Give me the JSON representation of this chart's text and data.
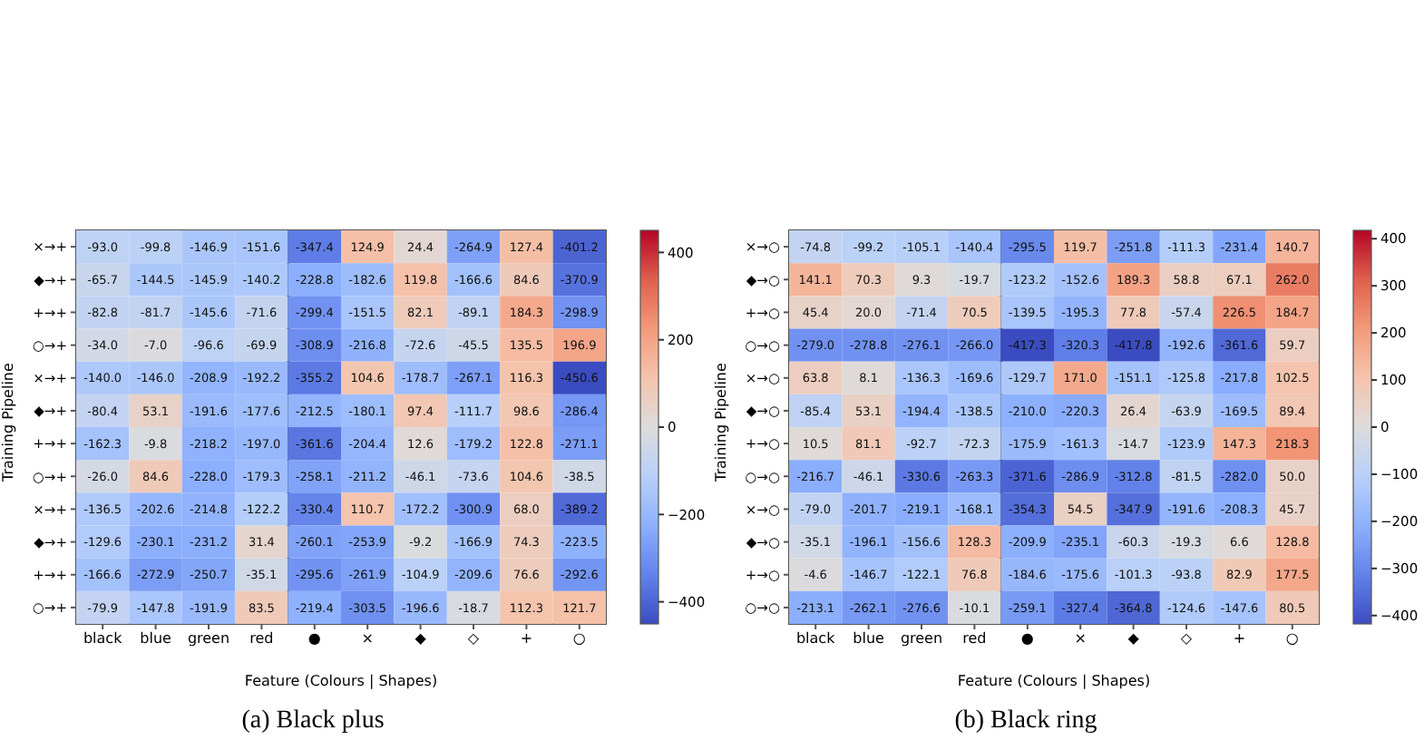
{
  "chart_data": [
    {
      "type": "heatmap",
      "title": "(a) Black plus",
      "xlabel": "Feature (Colours | Shapes)",
      "ylabel": "Training Pipeline",
      "categories": [
        "black",
        "blue",
        "green",
        "red",
        "●",
        "×",
        "◆",
        "◇",
        "+",
        "○"
      ],
      "y_categories": [
        "×→+",
        "◆→+",
        "+→+",
        "○→+",
        "×→+",
        "◆→+",
        "+→+",
        "○→+",
        "×→+",
        "◆→+",
        "+→+",
        "○→+"
      ],
      "cells": [
        [
          -93.0,
          -99.8,
          -146.9,
          -151.6,
          -347.4,
          124.9,
          24.4,
          -264.9,
          127.4,
          -401.2
        ],
        [
          -65.7,
          -144.5,
          -145.9,
          -140.2,
          -228.8,
          -182.6,
          119.8,
          -166.6,
          84.6,
          -370.9
        ],
        [
          -82.8,
          -81.7,
          -145.6,
          -71.6,
          -299.4,
          -151.5,
          82.1,
          -89.1,
          184.3,
          -298.9
        ],
        [
          -34.0,
          -7.0,
          -96.6,
          -69.9,
          -308.9,
          -216.8,
          -72.6,
          -45.5,
          135.5,
          196.9
        ],
        [
          -140.0,
          -146.0,
          -208.9,
          -192.2,
          -355.2,
          104.6,
          -178.7,
          -267.1,
          116.3,
          -450.6
        ],
        [
          -80.4,
          53.1,
          -191.6,
          -177.6,
          -212.5,
          -180.1,
          97.4,
          -111.7,
          98.6,
          -286.4
        ],
        [
          -162.3,
          -9.8,
          -218.2,
          -197.0,
          -361.6,
          -204.4,
          12.6,
          -179.2,
          122.8,
          -271.1
        ],
        [
          -26.0,
          84.6,
          -228.0,
          -179.3,
          -258.1,
          -211.2,
          -46.1,
          -73.6,
          104.6,
          -38.5
        ],
        [
          -136.5,
          -202.6,
          -214.8,
          -122.2,
          -330.4,
          110.7,
          -172.2,
          -300.9,
          68.0,
          -389.2
        ],
        [
          -129.6,
          -230.1,
          -231.2,
          31.4,
          -260.1,
          -253.9,
          -9.2,
          -166.9,
          74.3,
          -223.5
        ],
        [
          -166.6,
          -272.9,
          -250.7,
          -35.1,
          -295.6,
          -261.9,
          -104.9,
          -209.6,
          76.6,
          -292.6
        ],
        [
          -79.9,
          -147.8,
          -191.9,
          83.5,
          -219.4,
          -303.5,
          -196.6,
          -18.7,
          112.3,
          121.7
        ]
      ],
      "cell_labels": [
        [
          "-93.0",
          "-99.8",
          "-146.9",
          "-151.6",
          "-347.4",
          "124.9",
          "24.4",
          "-264.9",
          "127.4",
          "-401.2"
        ],
        [
          "-65.7",
          "-144.5",
          "-145.9",
          "-140.2",
          "-228.8",
          "-182.6",
          "119.8",
          "-166.6",
          "84.6",
          "-370.9"
        ],
        [
          "-82.8",
          "-81.7",
          "-145.6",
          "-71.6",
          "-299.4",
          "-151.5",
          "82.1",
          "-89.1",
          "184.3",
          "-298.9"
        ],
        [
          "-34.0",
          "-7.0",
          "-96.6",
          "-69.9",
          "-308.9",
          "-216.8",
          "-72.6",
          "-45.5",
          "135.5",
          "196.9"
        ],
        [
          "-140.0",
          "-146.0",
          "-208.9",
          "-192.2",
          "-355.2",
          "104.6",
          "-178.7",
          "-267.1",
          "116.3",
          "-450.6"
        ],
        [
          "-80.4",
          "53.1",
          "-191.6",
          "-177.6",
          "-212.5",
          "-180.1",
          "97.4",
          "-111.7",
          "98.6",
          "-286.4"
        ],
        [
          "-162.3",
          "-9.8",
          "-218.2",
          "-197.0",
          "-361.6",
          "-204.4",
          "12.6",
          "-179.2",
          "122.8",
          "-271.1"
        ],
        [
          "-26.0",
          "84.6",
          "-228.0",
          "-179.3",
          "-258.1",
          "-211.2",
          "-46.1",
          "-73.6",
          "104.6",
          "-38.5"
        ],
        [
          "-136.5",
          "-202.6",
          "-214.8",
          "-122.2",
          "-330.4",
          "110.7",
          "-172.2",
          "-300.9",
          "68.0",
          "-389.2"
        ],
        [
          "-129.6",
          "-230.1",
          "-231.2",
          "31.4",
          "-260.1",
          "-253.9",
          "-9.2",
          "-166.9",
          "74.3",
          "-223.5"
        ],
        [
          "-166.6",
          "-272.9",
          "-250.7",
          "-35.1",
          "-295.6",
          "-261.9",
          "-104.9",
          "-209.6",
          "76.6",
          "-292.6"
        ],
        [
          "-79.9",
          "-147.8",
          "-191.9",
          "83.5",
          "-219.4",
          "-303.5",
          "-196.6",
          "-18.7",
          "112.3",
          "121.7"
        ]
      ],
      "clim": [
        -450.6,
        450.6
      ],
      "cticks": [
        400,
        200,
        0,
        {
          "value": -200,
          "label": "−200"
        },
        {
          "value": -400,
          "label": "−400"
        }
      ]
    },
    {
      "type": "heatmap",
      "title": "(b) Black ring",
      "xlabel": "Feature (Colours | Shapes)",
      "ylabel": "Training Pipeline",
      "categories": [
        "black",
        "blue",
        "green",
        "red",
        "●",
        "×",
        "◆",
        "◇",
        "+",
        "○"
      ],
      "y_categories": [
        "×→○",
        "◆→○",
        "+→○",
        "○→○",
        "×→○",
        "◆→○",
        "+→○",
        "○→○",
        "×→○",
        "◆→○",
        "+→○",
        "○→○"
      ],
      "cells": [
        [
          -74.8,
          -99.2,
          -105.1,
          -140.4,
          -295.5,
          119.7,
          -251.8,
          -111.3,
          -231.4,
          140.7
        ],
        [
          141.1,
          70.3,
          9.3,
          -19.7,
          -123.2,
          -152.6,
          189.3,
          58.8,
          67.1,
          262.0
        ],
        [
          45.4,
          20.0,
          -71.4,
          70.5,
          -139.5,
          -195.3,
          77.8,
          -57.4,
          226.5,
          184.7
        ],
        [
          -279.0,
          -278.8,
          -276.1,
          -266.0,
          -417.3,
          -320.3,
          -417.8,
          -192.6,
          -361.6,
          59.7
        ],
        [
          63.8,
          8.1,
          -136.3,
          -169.6,
          -129.7,
          171.0,
          -151.1,
          -125.8,
          -217.8,
          102.5
        ],
        [
          -85.4,
          53.1,
          -194.4,
          -138.5,
          -210.0,
          -220.3,
          26.4,
          -63.9,
          -169.5,
          89.4
        ],
        [
          10.5,
          81.1,
          -92.7,
          -72.3,
          -175.9,
          -161.3,
          -14.7,
          -123.9,
          147.3,
          218.3
        ],
        [
          -216.7,
          -46.1,
          -330.6,
          -263.3,
          -371.6,
          -286.9,
          -312.8,
          -81.5,
          -282.0,
          50.0
        ],
        [
          -79.0,
          -201.7,
          -219.1,
          -168.1,
          -354.3,
          54.5,
          -347.9,
          -191.6,
          -208.3,
          45.7
        ],
        [
          -35.1,
          -196.1,
          -156.6,
          128.3,
          -209.9,
          -235.1,
          -60.3,
          -19.3,
          6.6,
          128.8
        ],
        [
          -4.6,
          -146.7,
          -122.1,
          76.8,
          -184.6,
          -175.6,
          -101.3,
          -93.8,
          82.9,
          177.5
        ],
        [
          -213.1,
          -262.1,
          -276.6,
          -10.1,
          -259.1,
          -327.4,
          -364.8,
          -124.6,
          -147.6,
          80.5
        ]
      ],
      "cell_labels": [
        [
          "-74.8",
          "-99.2",
          "-105.1",
          "-140.4",
          "-295.5",
          "119.7",
          "-251.8",
          "-111.3",
          "-231.4",
          "140.7"
        ],
        [
          "141.1",
          "70.3",
          "9.3",
          "-19.7",
          "-123.2",
          "-152.6",
          "189.3",
          "58.8",
          "67.1",
          "262.0"
        ],
        [
          "45.4",
          "20.0",
          "-71.4",
          "70.5",
          "-139.5",
          "-195.3",
          "77.8",
          "-57.4",
          "226.5",
          "184.7"
        ],
        [
          "-279.0",
          "-278.8",
          "-276.1",
          "-266.0",
          "-417.3",
          "-320.3",
          "-417.8",
          "-192.6",
          "-361.6",
          "59.7"
        ],
        [
          "63.8",
          "8.1",
          "-136.3",
          "-169.6",
          "-129.7",
          "171.0",
          "-151.1",
          "-125.8",
          "-217.8",
          "102.5"
        ],
        [
          "-85.4",
          "53.1",
          "-194.4",
          "-138.5",
          "-210.0",
          "-220.3",
          "26.4",
          "-63.9",
          "-169.5",
          "89.4"
        ],
        [
          "10.5",
          "81.1",
          "-92.7",
          "-72.3",
          "-175.9",
          "-161.3",
          "-14.7",
          "-123.9",
          "147.3",
          "218.3"
        ],
        [
          "-216.7",
          "-46.1",
          "-330.6",
          "-263.3",
          "-371.6",
          "-286.9",
          "-312.8",
          "-81.5",
          "-282.0",
          "50.0"
        ],
        [
          "-79.0",
          "-201.7",
          "-219.1",
          "-168.1",
          "-354.3",
          "54.5",
          "-347.9",
          "-191.6",
          "-208.3",
          "45.7"
        ],
        [
          "-35.1",
          "-196.1",
          "-156.6",
          "128.3",
          "-209.9",
          "-235.1",
          "-60.3",
          "-19.3",
          "6.6",
          "128.8"
        ],
        [
          "-4.6",
          "-146.7",
          "-122.1",
          "76.8",
          "-184.6",
          "-175.6",
          "-101.3",
          "-93.8",
          "82.9",
          "177.5"
        ],
        [
          "-213.1",
          "-262.1",
          "-276.6",
          "-10.1",
          "-259.1",
          "-327.4",
          "-364.8",
          "-124.6",
          "-147.6",
          "80.5"
        ]
      ],
      "clim": [
        -417.8,
        417.8
      ],
      "cticks": [
        400,
        300,
        200,
        100,
        0,
        {
          "value": -100,
          "label": "−100"
        },
        {
          "value": -200,
          "label": "−200"
        },
        {
          "value": -300,
          "label": "−300"
        },
        {
          "value": -400,
          "label": "−400"
        }
      ]
    }
  ]
}
